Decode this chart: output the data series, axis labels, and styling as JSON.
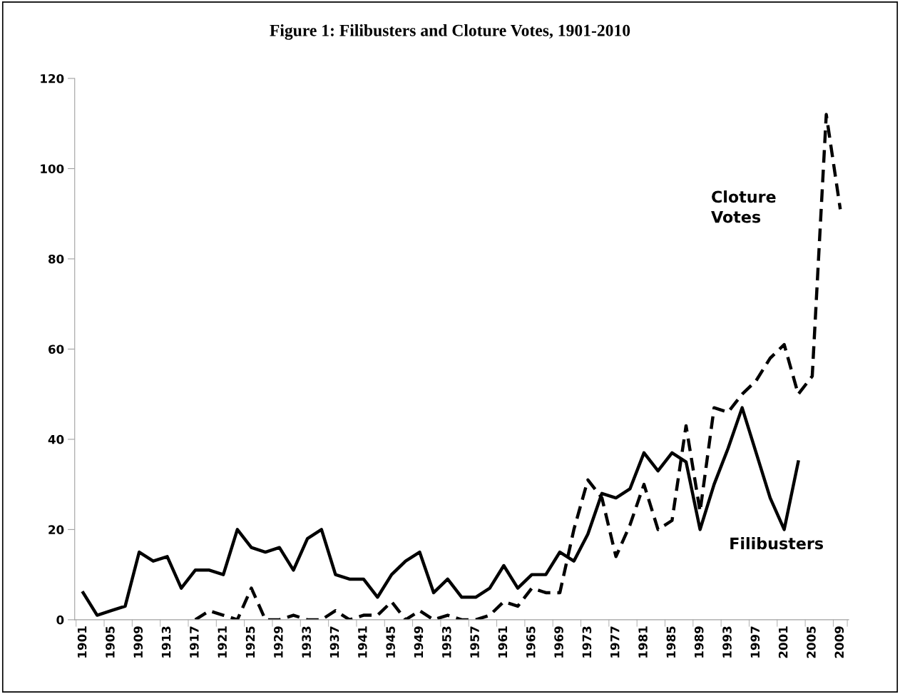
{
  "chart_data": {
    "type": "line",
    "title": "Figure 1: Filibusters and Cloture Votes, 1901-2010",
    "categories": [
      "1901",
      null,
      "1905",
      null,
      "1909",
      null,
      "1913",
      null,
      "1917",
      null,
      "1921",
      null,
      "1925",
      null,
      "1929",
      null,
      "1933",
      null,
      "1937",
      null,
      "1941",
      null,
      "1945",
      null,
      "1949",
      null,
      "1953",
      null,
      "1957",
      null,
      "1961",
      null,
      "1965",
      null,
      "1969",
      null,
      "1973",
      null,
      "1977",
      null,
      "1981",
      null,
      "1985",
      null,
      "1989",
      null,
      "1993",
      null,
      "1997",
      null,
      "2001",
      null,
      "2005",
      null,
      "2009"
    ],
    "series": [
      {
        "color": "#000000",
        "line_style": "solid",
        "values": [
          6,
          1,
          2,
          3,
          15,
          13,
          14,
          7,
          11,
          11,
          10,
          20,
          16,
          15,
          16,
          11,
          18,
          20,
          10,
          9,
          9,
          5,
          10,
          13,
          15,
          6,
          9,
          5,
          5,
          7,
          12,
          7,
          10,
          10,
          15,
          13,
          19,
          28,
          27,
          29,
          37,
          33,
          37,
          35,
          20,
          30,
          38,
          47,
          37,
          27,
          20,
          35,
          null,
          null,
          null
        ]
      },
      {
        "color": "#000000",
        "line_style": "dashed",
        "values": [
          null,
          null,
          null,
          null,
          null,
          null,
          null,
          null,
          0,
          2,
          1,
          0,
          7,
          0,
          0,
          1,
          0,
          0,
          2,
          0,
          1,
          1,
          4,
          0,
          2,
          0,
          1,
          0,
          0,
          1,
          4,
          3,
          7,
          6,
          6,
          20,
          31,
          27,
          14,
          21,
          30,
          20,
          22,
          43,
          24,
          47,
          46,
          50,
          53,
          58,
          61,
          50,
          54,
          112,
          91
        ]
      }
    ],
    "annotations": [
      "Cloture\nVotes",
      "Filibusters"
    ],
    "ylim": [
      0,
      120
    ],
    "yticks": [
      0,
      20,
      40,
      60,
      80,
      100,
      120
    ],
    "grid": false,
    "legend": false,
    "marker": "none"
  }
}
